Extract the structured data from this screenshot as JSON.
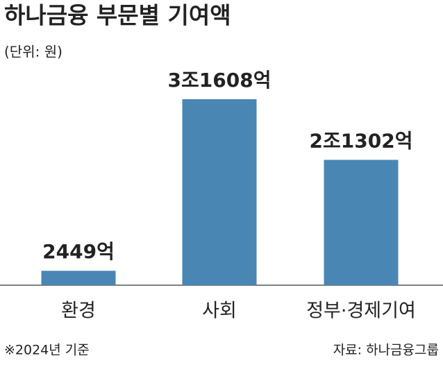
{
  "chart_data": {
    "type": "bar",
    "title": "하나금융 부문별 기여액",
    "subtitle": "(단위: 원)",
    "categories": [
      "환경",
      "사회",
      "정부·경제기여"
    ],
    "values": [
      2449,
      31608,
      21302
    ],
    "value_labels": [
      "2449억",
      "3조1608억",
      "2조1302억"
    ],
    "color": "#4a86b4",
    "note": "※2024년 기준",
    "source": "자료: 하나금융그룹"
  }
}
